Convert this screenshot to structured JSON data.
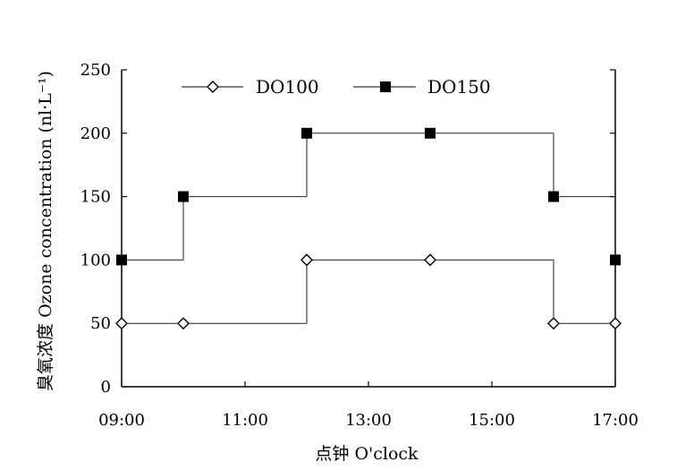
{
  "chart_data": {
    "type": "line",
    "title": "",
    "xlabel": "点钟 O'clock",
    "ylabel": "臭氧浓度 Ozone concentration (nl·L⁻¹)",
    "xlim": [
      9,
      17
    ],
    "ylim": [
      0,
      250
    ],
    "x_tick_labels": [
      "09:00",
      "11:00",
      "13:00",
      "15:00",
      "17:00"
    ],
    "x_ticks": [
      9,
      11,
      13,
      15,
      17
    ],
    "y_ticks": [
      0,
      50,
      100,
      150,
      200,
      250
    ],
    "grid": "horizontal-partial",
    "legend": "top-left",
    "series": [
      {
        "name": "DO100",
        "marker": "open-diamond",
        "color": "#000000",
        "x": [
          9,
          10,
          12,
          14,
          16,
          17
        ],
        "y": [
          50,
          50,
          100,
          100,
          50,
          50
        ]
      },
      {
        "name": "DO150",
        "marker": "filled-square",
        "color": "#000000",
        "x": [
          9,
          10,
          12,
          14,
          16,
          17
        ],
        "y": [
          100,
          150,
          200,
          200,
          150,
          100
        ]
      }
    ]
  }
}
